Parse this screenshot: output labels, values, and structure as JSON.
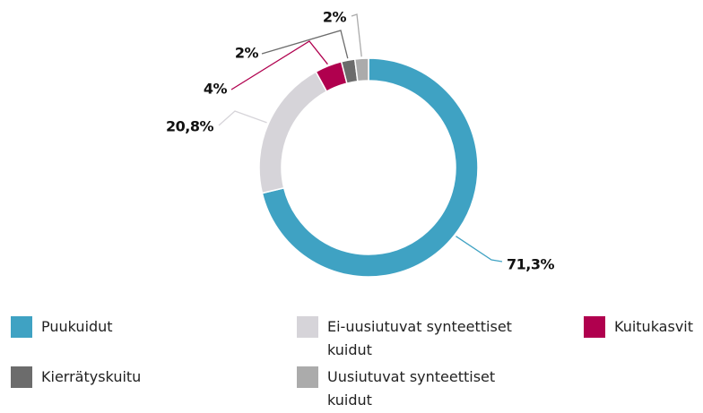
{
  "chart_data": {
    "type": "donut",
    "categories": [
      "Puukuidut",
      "Ei-uusiutuvat synteettiset kuidut",
      "Kuitukasvit",
      "Kierrätyskuitu",
      "Uusiutuvat synteettiset kuidut"
    ],
    "values": [
      71.3,
      20.8,
      4,
      2,
      2
    ],
    "value_labels": [
      "71,3%",
      "20,8%",
      "4%",
      "2%",
      "2%"
    ],
    "colors": [
      "#3fa2c3",
      "#d6d4d9",
      "#b0004e",
      "#6c6c6c",
      "#ababab"
    ]
  }
}
